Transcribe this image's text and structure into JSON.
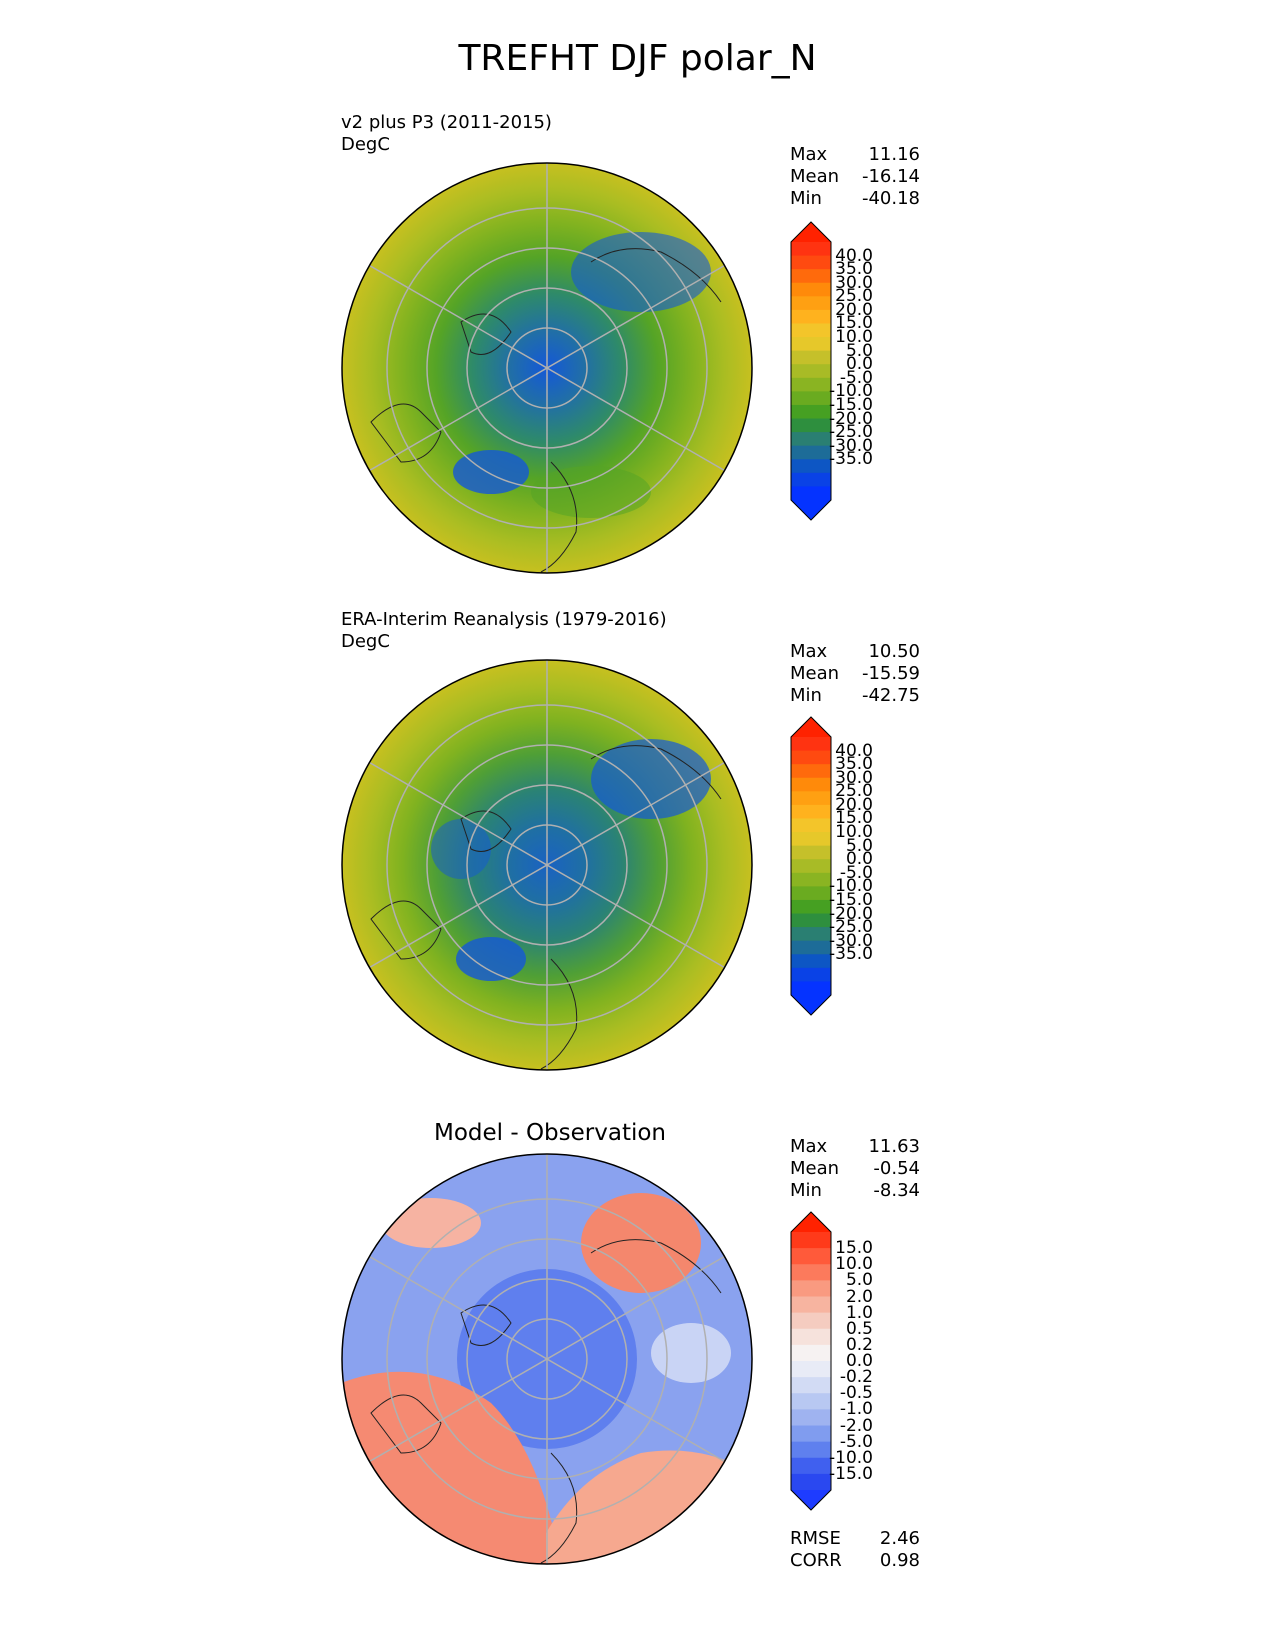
{
  "figure": {
    "title": "TREFHT DJF polar_N"
  },
  "panels": [
    {
      "title": "v2 plus P3 (2011-2015)",
      "units": "DegC",
      "stats": {
        "max_label": "Max",
        "max": "11.16",
        "mean_label": "Mean",
        "mean": "-16.14",
        "min_label": "Min",
        "min": "-40.18"
      },
      "colorbar": {
        "ticks": [
          "40.0",
          "35.0",
          "30.0",
          "25.0",
          "20.0",
          "15.0",
          "10.0",
          "5.0",
          "0.0",
          "-5.0",
          "-10.0",
          "-15.0",
          "-20.0",
          "-25.0",
          "-30.0",
          "-35.0"
        ],
        "colors": [
          "#ff3311",
          "#ff4a10",
          "#ff6a0c",
          "#ff8a0a",
          "#ffa012",
          "#ffb21e",
          "#f3c52a",
          "#e6c82a",
          "#c5c02a",
          "#a8bb26",
          "#8ab422",
          "#6aab20",
          "#46a022",
          "#2e8f3e",
          "#2a7f72",
          "#1d6c98",
          "#0d56c4",
          "#0a42e6",
          "#0533ff"
        ],
        "top_color": "#ff2200",
        "bottom_color": "#0533ff"
      },
      "map": {
        "colors": [
          "#c8c020",
          "#a9bd22",
          "#7fb220",
          "#55a426",
          "#2e8a6a",
          "#216fa6",
          "#1458d8"
        ],
        "radial": [
          0.0,
          0.18,
          0.36,
          0.54,
          0.7,
          0.86,
          1.0
        ]
      }
    },
    {
      "title": "ERA-Interim Reanalysis (1979-2016)",
      "units": "DegC",
      "stats": {
        "max_label": "Max",
        "max": "10.50",
        "mean_label": "Mean",
        "mean": "-15.59",
        "min_label": "Min",
        "min": "-42.75"
      },
      "colorbar": {
        "ticks": [
          "40.0",
          "35.0",
          "30.0",
          "25.0",
          "20.0",
          "15.0",
          "10.0",
          "5.0",
          "0.0",
          "-5.0",
          "-10.0",
          "-15.0",
          "-20.0",
          "-25.0",
          "-30.0",
          "-35.0"
        ],
        "colors": [
          "#ff3311",
          "#ff4a10",
          "#ff6a0c",
          "#ff8a0a",
          "#ffa012",
          "#ffb21e",
          "#f3c52a",
          "#e6c82a",
          "#c5c02a",
          "#a8bb26",
          "#8ab422",
          "#6aab20",
          "#46a022",
          "#2e8f3e",
          "#2a7f72",
          "#1d6c98",
          "#0d56c4",
          "#0a42e6",
          "#0533ff"
        ],
        "top_color": "#ff2200",
        "bottom_color": "#0533ff"
      },
      "map": {
        "colors": [
          "#c8c020",
          "#a9bd22",
          "#7fb220",
          "#4f9f36",
          "#2a8276",
          "#1f6fa4",
          "#1a62c2"
        ],
        "radial": [
          0.0,
          0.18,
          0.36,
          0.54,
          0.7,
          0.86,
          1.0
        ]
      }
    },
    {
      "title": "Model - Observation",
      "stats": {
        "max_label": "Max",
        "max": "11.63",
        "mean_label": "Mean",
        "mean": "-0.54",
        "min_label": "Min",
        "min": "-8.34"
      },
      "extra_stats": {
        "rmse_label": "RMSE",
        "rmse": "2.46",
        "corr_label": "CORR",
        "corr": "0.98"
      },
      "colorbar": {
        "ticks": [
          "15.0",
          "10.0",
          "5.0",
          "2.0",
          "1.0",
          "0.5",
          "0.2",
          "0.0",
          "-0.2",
          "-0.5",
          "-1.0",
          "-2.0",
          "-5.0",
          "-10.0",
          "-15.0"
        ],
        "colors": [
          "#ff3a1a",
          "#ff5a3a",
          "#fc7a5c",
          "#f99a80",
          "#f7b4a0",
          "#f5ccc0",
          "#f6e2dc",
          "#f6f2f2",
          "#e8ebf6",
          "#d2dbf4",
          "#b8c8f2",
          "#9fb3f0",
          "#809cef",
          "#5f80ee",
          "#4060ef",
          "#2a48f0"
        ],
        "top_color": "#ff2200",
        "bottom_color": "#1e3cff"
      }
    }
  ]
}
